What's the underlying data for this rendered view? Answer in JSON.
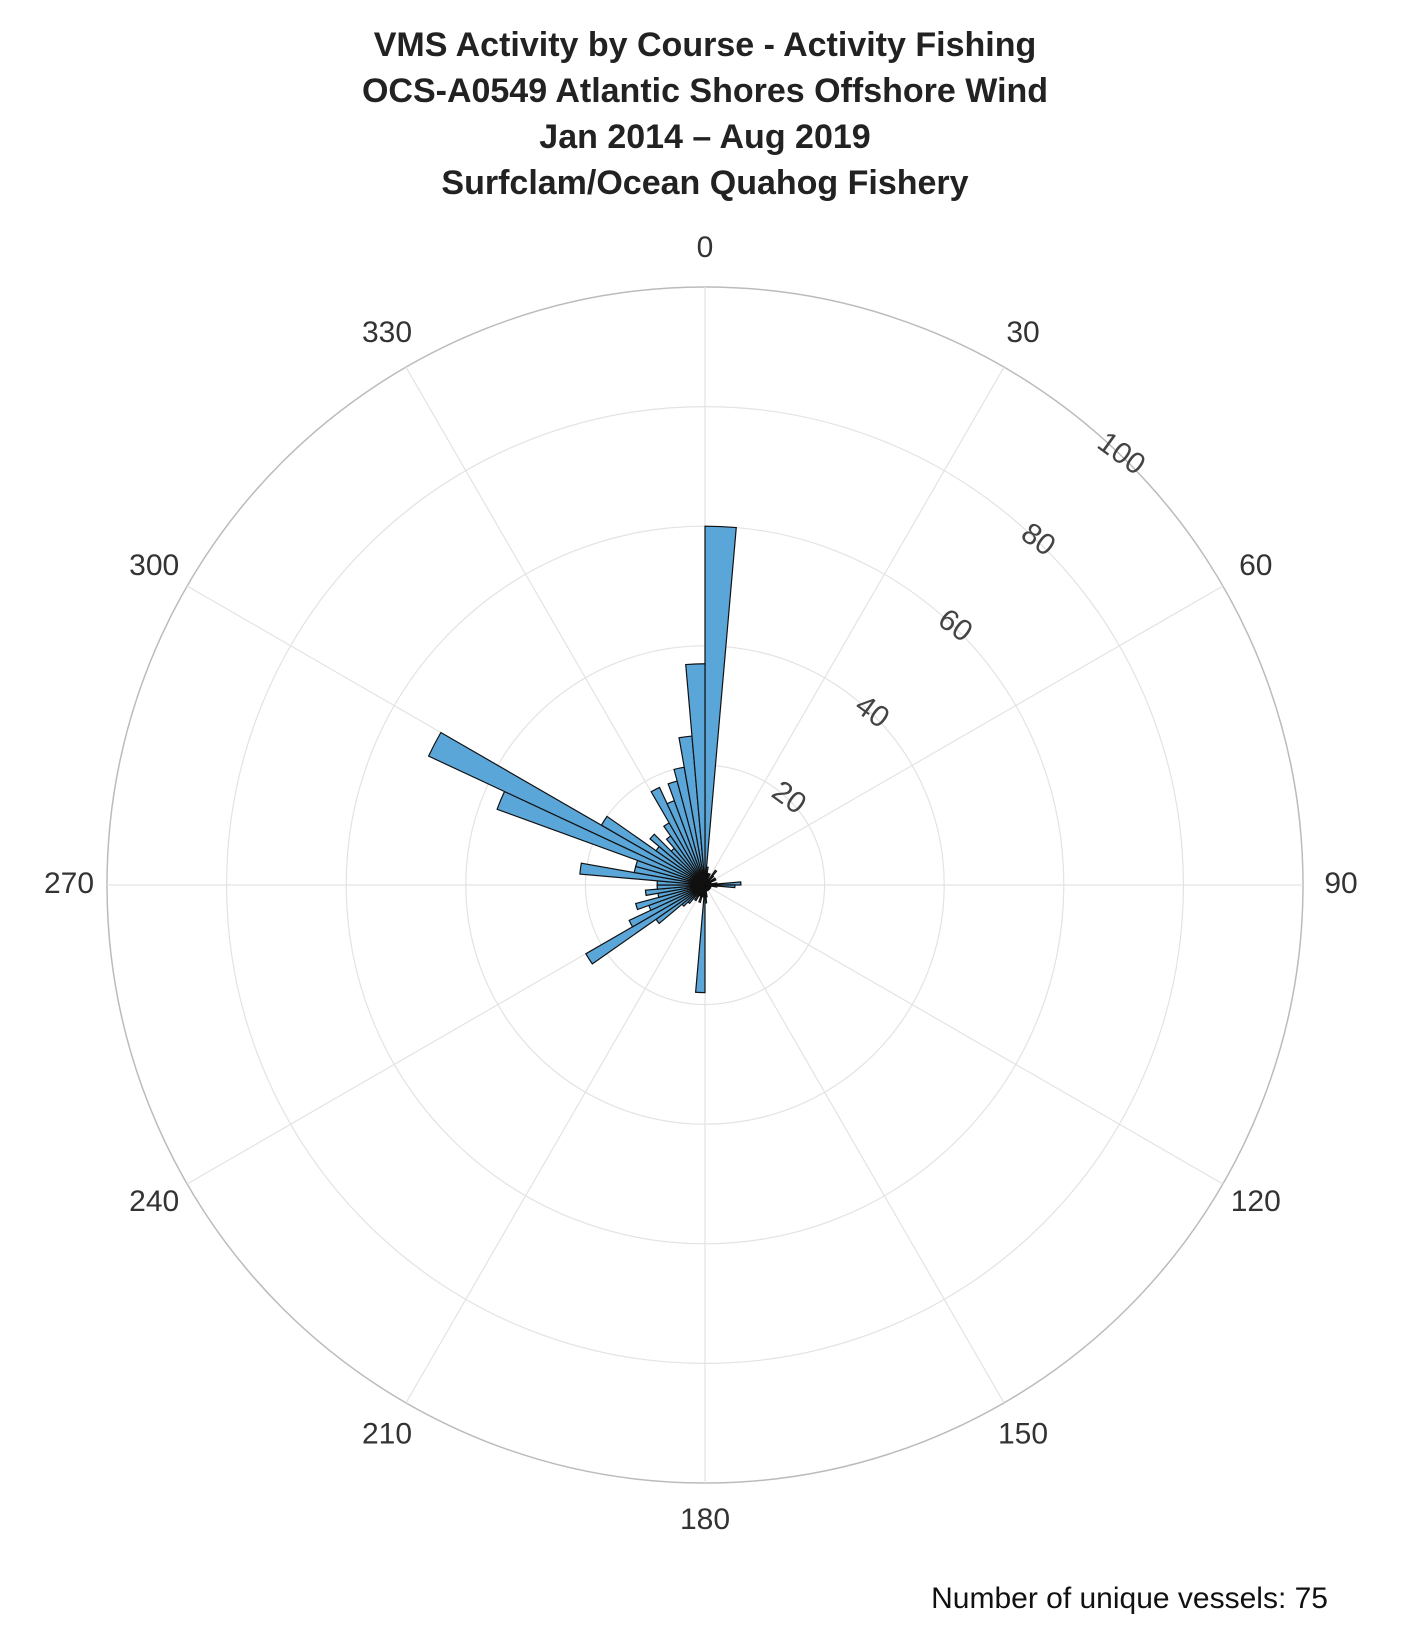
{
  "chart_data": {
    "type": "polar_histogram",
    "title": [
      "VMS Activity by Course  - Activity Fishing",
      "OCS-A0549 Atlantic Shores Offshore Wind",
      "Jan 2014 – Aug 2019",
      "Surfclam/Ocean Quahog Fishery"
    ],
    "annotation": "Number of unique vessels: 75",
    "color": "#5ba6d9",
    "bins": [
      0,
      5,
      10,
      15,
      20,
      25,
      30,
      35,
      40,
      45,
      50,
      55,
      60,
      65,
      70,
      75,
      80,
      85,
      90,
      95,
      100,
      105,
      110,
      115,
      120,
      125,
      130,
      135,
      140,
      145,
      150,
      155,
      160,
      165,
      170,
      175,
      180,
      185,
      190,
      195,
      200,
      205,
      210,
      215,
      220,
      225,
      230,
      235,
      240,
      245,
      250,
      255,
      260,
      265,
      270,
      275,
      280,
      285,
      290,
      295,
      300,
      305,
      310,
      315,
      320,
      325,
      330,
      335,
      340,
      345,
      350,
      355,
      360
    ],
    "values": [
      60,
      3,
      2,
      1,
      2,
      1,
      1,
      3,
      2,
      1,
      1,
      2,
      2,
      1,
      1,
      1,
      2,
      6,
      5,
      2,
      1,
      1,
      1,
      1,
      1,
      1,
      1,
      1,
      1,
      1,
      1,
      1,
      1,
      1,
      2,
      3,
      18,
      2,
      2,
      3,
      2,
      2,
      3,
      2,
      4,
      5,
      10,
      23,
      14,
      10,
      12,
      8,
      10,
      8,
      8,
      21,
      12,
      12,
      37,
      51,
      20,
      10,
      12,
      8,
      10,
      12,
      18,
      15,
      18,
      20,
      25,
      37
    ],
    "rlim": [
      0,
      100
    ],
    "rticks": [
      20,
      40,
      60,
      80,
      100
    ],
    "thetaticks": [
      0,
      30,
      60,
      90,
      120,
      150,
      180,
      210,
      240,
      270,
      300,
      330
    ],
    "grid": true
  }
}
